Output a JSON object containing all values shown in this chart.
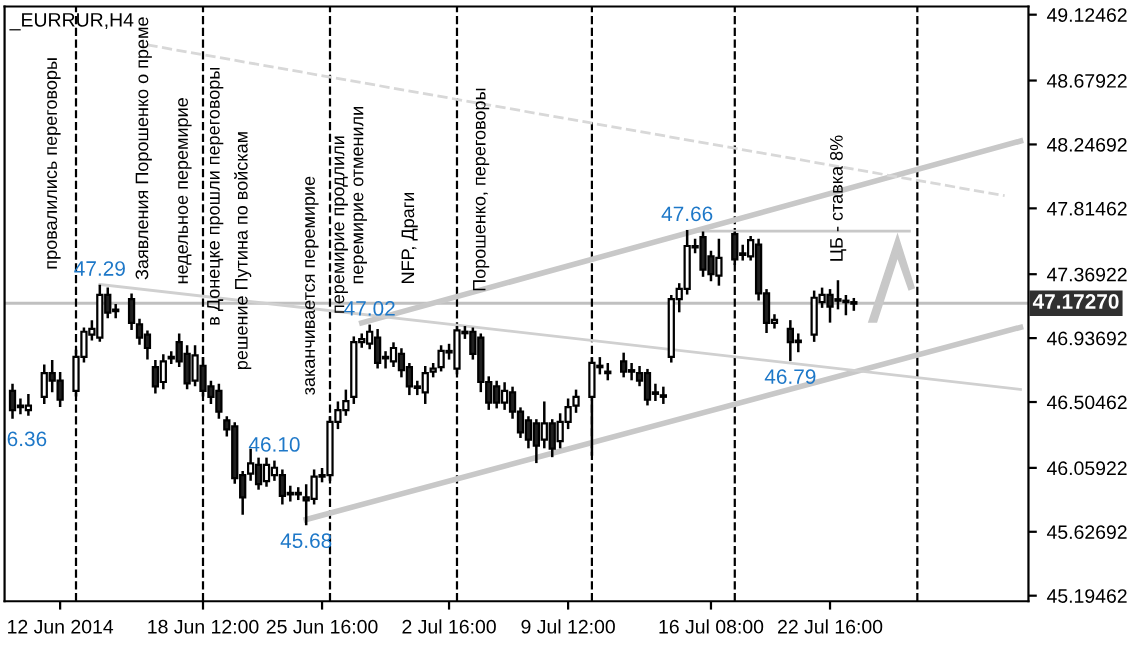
{
  "chart_data": {
    "type": "candlestick",
    "title": "_EURRUR,H4",
    "categories": [
      null,
      null,
      null,
      null,
      null,
      null,
      "12 Jun 2014",
      null,
      null,
      null,
      null,
      null,
      null,
      null,
      null,
      null,
      null,
      null,
      null,
      null,
      null,
      null,
      null,
      null,
      "18 Jun 12:00",
      null,
      null,
      null,
      null,
      null,
      null,
      null,
      null,
      null,
      null,
      null,
      null,
      null,
      null,
      "25 Jun 16:00",
      null,
      null,
      null,
      null,
      null,
      null,
      null,
      null,
      null,
      null,
      null,
      null,
      null,
      null,
      null,
      "2 Jul 16:00",
      null,
      null,
      null,
      null,
      null,
      null,
      null,
      null,
      null,
      null,
      null,
      null,
      null,
      null,
      "9 Jul 12:00",
      null,
      null,
      null,
      null,
      null,
      null,
      null,
      null,
      null,
      null,
      null,
      null,
      null,
      null,
      null,
      null,
      null,
      "16 Jul 08:00",
      null,
      null,
      null,
      null,
      null,
      null,
      null,
      null,
      null,
      null,
      null,
      null,
      null,
      null,
      "22 Jul 16:00",
      null,
      null,
      null,
      null,
      null,
      null,
      null,
      null,
      null,
      null,
      null,
      null,
      null,
      null,
      null,
      null,
      null,
      null,
      null,
      null,
      null,
      null,
      null,
      null
    ],
    "ohlc": [
      [
        46.58,
        46.62,
        46.4,
        46.45
      ],
      [
        46.48,
        46.52,
        46.43,
        46.47
      ],
      [
        46.45,
        46.55,
        46.42,
        46.48
      ],
      null,
      [
        46.54,
        46.75,
        46.5,
        46.7
      ],
      [
        46.7,
        46.78,
        46.58,
        46.65
      ],
      [
        46.65,
        46.7,
        46.48,
        46.52
      ],
      null,
      [
        46.58,
        46.85,
        46.55,
        46.81
      ],
      [
        46.81,
        47.0,
        46.78,
        46.98
      ],
      [
        46.96,
        47.05,
        46.93,
        47.0
      ],
      [
        46.94,
        47.29,
        46.92,
        47.23
      ],
      [
        47.23,
        47.27,
        47.08,
        47.11
      ],
      [
        47.13,
        47.16,
        47.08,
        47.12
      ],
      null,
      [
        47.2,
        47.23,
        47.0,
        47.04
      ],
      [
        47.03,
        47.06,
        46.9,
        46.94
      ],
      [
        46.96,
        46.98,
        46.8,
        46.87
      ],
      [
        46.74,
        46.78,
        46.57,
        46.61
      ],
      [
        46.64,
        46.82,
        46.6,
        46.78
      ],
      [
        46.8,
        46.84,
        46.77,
        46.81
      ],
      [
        46.91,
        46.96,
        46.75,
        46.78
      ],
      [
        46.83,
        46.88,
        46.6,
        46.63
      ],
      [
        46.65,
        46.88,
        46.62,
        46.82
      ],
      [
        46.75,
        46.8,
        46.55,
        46.58
      ],
      [
        46.61,
        46.64,
        46.5,
        46.54
      ],
      [
        46.58,
        46.62,
        46.4,
        46.44
      ],
      [
        46.38,
        46.4,
        46.28,
        46.32
      ],
      [
        46.34,
        46.36,
        45.96,
        45.99
      ],
      [
        46.01,
        46.03,
        45.75,
        45.86
      ],
      [
        46.02,
        46.18,
        45.98,
        46.09
      ],
      [
        46.08,
        46.12,
        45.92,
        45.95
      ],
      [
        45.97,
        46.12,
        45.94,
        46.08
      ],
      [
        46.01,
        46.1,
        45.98,
        46.06
      ],
      [
        46.01,
        46.04,
        45.82,
        45.87
      ],
      [
        45.89,
        45.93,
        45.84,
        45.88
      ],
      [
        45.88,
        45.92,
        45.85,
        45.89
      ],
      [
        45.86,
        45.94,
        45.68,
        45.84
      ],
      [
        45.85,
        46.04,
        45.82,
        46.0
      ],
      [
        46.0,
        46.05,
        45.97,
        46.01
      ],
      [
        46.01,
        46.4,
        45.98,
        46.37
      ],
      [
        46.37,
        46.5,
        46.33,
        46.45
      ],
      [
        46.45,
        46.58,
        46.42,
        46.51
      ],
      [
        46.54,
        46.94,
        46.5,
        46.91
      ],
      [
        46.91,
        46.96,
        46.88,
        46.93
      ],
      [
        46.9,
        47.02,
        46.87,
        46.98
      ],
      [
        46.94,
        46.99,
        46.74,
        46.77
      ],
      [
        46.81,
        46.84,
        46.74,
        46.8
      ],
      [
        46.78,
        46.9,
        46.75,
        46.87
      ],
      [
        46.83,
        46.86,
        46.68,
        46.72
      ],
      [
        46.74,
        46.76,
        46.56,
        46.61
      ],
      [
        46.61,
        46.64,
        46.56,
        46.6
      ],
      [
        46.57,
        46.74,
        46.5,
        46.7
      ],
      [
        46.71,
        46.76,
        46.68,
        46.73
      ],
      [
        46.74,
        46.88,
        46.72,
        46.85
      ],
      [
        46.85,
        46.89,
        46.8,
        46.84
      ],
      [
        46.73,
        47.01,
        46.7,
        46.99
      ],
      [
        46.98,
        47.01,
        46.94,
        46.97
      ],
      [
        46.98,
        47.0,
        46.8,
        46.83
      ],
      [
        46.94,
        46.96,
        46.58,
        46.64
      ],
      [
        46.64,
        46.67,
        46.46,
        46.5
      ],
      [
        46.61,
        46.64,
        46.47,
        46.5
      ],
      [
        46.5,
        46.63,
        46.46,
        46.58
      ],
      [
        46.57,
        46.6,
        46.4,
        46.44
      ],
      [
        46.44,
        46.46,
        46.27,
        46.3
      ],
      [
        46.38,
        46.4,
        46.2,
        46.25
      ],
      [
        46.36,
        46.38,
        46.1,
        46.21
      ],
      [
        46.25,
        46.5,
        46.2,
        46.36
      ],
      [
        46.36,
        46.38,
        46.14,
        46.19
      ],
      [
        46.24,
        46.42,
        46.2,
        46.37
      ],
      [
        46.37,
        46.52,
        46.33,
        46.47
      ],
      [
        46.48,
        46.58,
        46.44,
        46.54
      ],
      null,
      [
        46.54,
        46.8,
        46.15,
        46.77
      ],
      [
        46.74,
        46.8,
        46.7,
        46.75
      ],
      [
        46.71,
        46.76,
        46.66,
        46.7
      ],
      null,
      [
        46.78,
        46.83,
        46.68,
        46.71
      ],
      [
        46.71,
        46.76,
        46.66,
        46.72
      ],
      [
        46.7,
        46.74,
        46.62,
        46.65
      ],
      [
        46.7,
        46.72,
        46.49,
        46.52
      ],
      [
        46.57,
        46.62,
        46.52,
        46.56
      ],
      [
        46.55,
        46.6,
        46.5,
        46.54
      ],
      [
        46.81,
        47.22,
        46.78,
        47.2
      ],
      [
        47.2,
        47.3,
        47.12,
        47.27
      ],
      [
        47.27,
        47.66,
        47.24,
        47.56
      ],
      [
        47.56,
        47.6,
        47.52,
        47.55
      ],
      [
        47.62,
        47.65,
        47.36,
        47.4
      ],
      [
        47.49,
        47.52,
        47.33,
        47.37
      ],
      [
        47.36,
        47.6,
        47.3,
        47.48
      ],
      null,
      [
        47.64,
        47.65,
        47.44,
        47.47
      ],
      [
        47.51,
        47.56,
        47.47,
        47.5
      ],
      [
        47.49,
        47.62,
        47.47,
        47.6
      ],
      [
        47.57,
        47.6,
        47.2,
        47.24
      ],
      [
        47.24,
        47.26,
        46.98,
        47.04
      ],
      [
        47.04,
        47.09,
        47.01,
        47.06
      ],
      null,
      [
        47.0,
        47.05,
        46.79,
        46.91
      ],
      [
        46.91,
        46.96,
        46.85,
        46.92
      ],
      null,
      [
        46.96,
        47.25,
        46.92,
        47.21
      ],
      [
        47.18,
        47.27,
        47.15,
        47.23
      ],
      [
        47.23,
        47.26,
        47.05,
        47.15
      ],
      [
        47.19,
        47.32,
        47.14,
        47.2
      ],
      [
        47.19,
        47.22,
        47.1,
        47.18
      ],
      [
        47.18,
        47.2,
        47.13,
        47.17
      ],
      null,
      null,
      null,
      null,
      null,
      null,
      null,
      null,
      null,
      null,
      null,
      null,
      null,
      null,
      null,
      null,
      null,
      null,
      null,
      null,
      null
    ],
    "series": [
      {
        "type": "line",
        "color": "#c8c8c8",
        "values": [
          null,
          null,
          null,
          null,
          null,
          null,
          null,
          null,
          null,
          null,
          null,
          null,
          null,
          null,
          null,
          null,
          null,
          null,
          null,
          null,
          null,
          null,
          null,
          null,
          null,
          null,
          null,
          null,
          null,
          null,
          null,
          null,
          null,
          null,
          null,
          null,
          null,
          null,
          null,
          null,
          null,
          null,
          null,
          null,
          47.04,
          null,
          null,
          null,
          null,
          null,
          null,
          null,
          null,
          null,
          null,
          null,
          null,
          null,
          null,
          null,
          null,
          null,
          null,
          null,
          null,
          null,
          null,
          null,
          null,
          null,
          null,
          null,
          null,
          null,
          null,
          null,
          null,
          null,
          null,
          null,
          null,
          null,
          null,
          null,
          null,
          null,
          null,
          null,
          null,
          null,
          null,
          null,
          null,
          null,
          null,
          null,
          null,
          null,
          null,
          null,
          null,
          null,
          null,
          null,
          null,
          null,
          null,
          null,
          null,
          null,
          null,
          null,
          null,
          null,
          null,
          null,
          null,
          null,
          null,
          null,
          null,
          null,
          null,
          null,
          null,
          null,
          null,
          48.27
        ]
      },
      {
        "type": "line",
        "color": "#c8c8c8",
        "values": [
          null,
          null,
          null,
          null,
          null,
          null,
          null,
          null,
          null,
          null,
          null,
          null,
          null,
          null,
          null,
          null,
          null,
          null,
          null,
          null,
          null,
          null,
          null,
          null,
          null,
          null,
          null,
          null,
          null,
          null,
          null,
          null,
          null,
          null,
          null,
          null,
          null,
          45.71,
          null,
          null,
          null,
          null,
          null,
          null,
          null,
          null,
          null,
          null,
          null,
          null,
          null,
          null,
          null,
          null,
          null,
          null,
          null,
          null,
          null,
          null,
          null,
          null,
          null,
          null,
          null,
          null,
          null,
          null,
          null,
          null,
          null,
          null,
          null,
          null,
          null,
          null,
          null,
          null,
          null,
          null,
          null,
          null,
          null,
          null,
          null,
          null,
          null,
          null,
          null,
          null,
          null,
          null,
          null,
          null,
          null,
          null,
          null,
          null,
          null,
          null,
          null,
          null,
          null,
          null,
          null,
          null,
          null,
          null,
          null,
          null,
          null,
          null,
          null,
          null,
          null,
          null,
          null,
          null,
          null,
          null,
          null,
          null,
          null,
          null,
          null,
          null,
          null,
          47.01
        ]
      },
      {
        "type": "line",
        "color": "#d0d0d0",
        "values": [
          null,
          null,
          null,
          null,
          null,
          null,
          null,
          null,
          null,
          null,
          null,
          47.3,
          null,
          null,
          null,
          null,
          null,
          null,
          null,
          null,
          null,
          null,
          null,
          null,
          null,
          null,
          null,
          null,
          null,
          null,
          null,
          null,
          null,
          null,
          null,
          null,
          null,
          null,
          null,
          null,
          null,
          null,
          null,
          null,
          null,
          null,
          null,
          null,
          null,
          null,
          null,
          null,
          null,
          null,
          null,
          null,
          null,
          null,
          null,
          null,
          null,
          null,
          null,
          null,
          null,
          null,
          null,
          null,
          null,
          null,
          null,
          null,
          null,
          null,
          null,
          null,
          null,
          null,
          null,
          null,
          null,
          null,
          null,
          null,
          null,
          null,
          null,
          null,
          null,
          null,
          null,
          null,
          null,
          null,
          null,
          null,
          null,
          null,
          null,
          null,
          null,
          null,
          null,
          null,
          null,
          null,
          null,
          null,
          null,
          null,
          null,
          null,
          null,
          null,
          null,
          null,
          null,
          null,
          null,
          null,
          null,
          null,
          null,
          null,
          null,
          null,
          null,
          46.59
        ]
      },
      {
        "type": "line",
        "color": "#d8d8d8",
        "line_style": "dashed",
        "values": [
          null,
          null,
          null,
          null,
          null,
          null,
          null,
          null,
          null,
          null,
          null,
          null,
          null,
          null,
          null,
          null,
          null,
          48.92,
          null,
          null,
          null,
          null,
          null,
          null,
          null,
          null,
          null,
          null,
          null,
          null,
          null,
          null,
          null,
          null,
          null,
          null,
          null,
          null,
          null,
          null,
          null,
          null,
          null,
          null,
          null,
          null,
          null,
          null,
          null,
          null,
          null,
          null,
          null,
          null,
          null,
          null,
          null,
          null,
          null,
          null,
          null,
          null,
          null,
          null,
          null,
          null,
          null,
          null,
          null,
          null,
          null,
          null,
          null,
          null,
          null,
          null,
          null,
          null,
          null,
          null,
          null,
          null,
          null,
          null,
          null,
          null,
          null,
          null,
          null,
          null,
          null,
          null,
          null,
          null,
          null,
          null,
          null,
          null,
          null,
          null,
          null,
          null,
          null,
          null,
          null,
          null,
          null,
          null,
          null,
          null,
          null,
          null,
          null,
          null,
          null,
          null,
          null,
          null,
          null,
          null,
          null,
          null,
          null,
          null,
          null,
          47.9,
          null,
          null
        ]
      },
      {
        "type": "line",
        "color": "#c8c8c8",
        "values": [
          null,
          null,
          null,
          null,
          null,
          null,
          null,
          null,
          null,
          null,
          null,
          null,
          null,
          null,
          null,
          null,
          null,
          null,
          null,
          null,
          null,
          null,
          null,
          null,
          null,
          null,
          null,
          null,
          null,
          null,
          null,
          null,
          null,
          null,
          null,
          null,
          null,
          null,
          null,
          null,
          null,
          null,
          null,
          null,
          null,
          null,
          null,
          null,
          null,
          null,
          null,
          null,
          null,
          null,
          null,
          null,
          null,
          null,
          null,
          null,
          null,
          null,
          null,
          null,
          null,
          null,
          null,
          null,
          null,
          null,
          null,
          null,
          null,
          null,
          null,
          null,
          null,
          null,
          null,
          null,
          null,
          null,
          null,
          null,
          null,
          47.66,
          null,
          null,
          null,
          null,
          null,
          null,
          null,
          null,
          null,
          null,
          null,
          null,
          null,
          null,
          null,
          null,
          null,
          null,
          null,
          null,
          null,
          null,
          null,
          null,
          null,
          null,
          null,
          47.66,
          null,
          null,
          null,
          null,
          null,
          null,
          null,
          null,
          null,
          null,
          null,
          null,
          null,
          null
        ]
      }
    ],
    "ylim": [
      45.157,
      49.18
    ],
    "yticks": [
      45.19462,
      45.62692,
      46.05922,
      46.50462,
      46.93692,
      47.36922,
      47.81462,
      48.24692,
      48.67922,
      49.12462
    ],
    "ref_lines": [
      {
        "axis": "y",
        "value": 47.1727,
        "label": "47.17270",
        "color": "#c0c0c0"
      }
    ],
    "annotations": [
      {
        "text": "47.29",
        "y": 47.29
      },
      {
        "text": "45.68",
        "y": 45.68
      },
      {
        "text": "47.02",
        "y": 47.02
      },
      {
        "text": "46.10",
        "y": 46.1
      },
      {
        "text": "47.66",
        "y": 47.66
      },
      {
        "text": "46.79",
        "y": 46.79
      },
      "6.36",
      "провалились переговоры",
      "Заявления Порошенко о преме",
      "недельное перемирие",
      "в Донецке прошли переговоры",
      "решение Путина по войскам",
      "заканчивается перемирие",
      "перемирие продлили",
      "перемирие отменили",
      "NFP, Драги",
      "Порошенко, переговоры",
      "ЦБ - ставка 8%"
    ]
  }
}
